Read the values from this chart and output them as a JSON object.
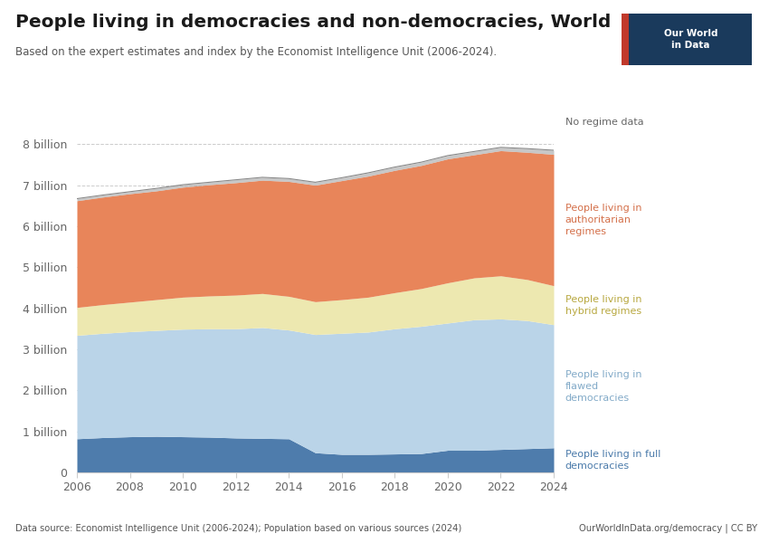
{
  "title": "People living in democracies and non-democracies, World",
  "subtitle": "Based on the expert estimates and index by the Economist Intelligence Unit (2006-2024).",
  "footer_left": "Data source: Economist Intelligence Unit (2006-2024); Population based on various sources (2024)",
  "footer_right": "OurWorldInData.org/democracy | CC BY",
  "years": [
    2006,
    2007,
    2008,
    2009,
    2010,
    2011,
    2012,
    2013,
    2014,
    2015,
    2016,
    2017,
    2018,
    2019,
    2020,
    2021,
    2022,
    2023,
    2024
  ],
  "full_democracies": [
    0.82,
    0.85,
    0.87,
    0.88,
    0.87,
    0.86,
    0.84,
    0.83,
    0.82,
    0.48,
    0.44,
    0.44,
    0.45,
    0.46,
    0.54,
    0.54,
    0.56,
    0.58,
    0.6
  ],
  "flawed_democracies": [
    2.52,
    2.54,
    2.56,
    2.58,
    2.62,
    2.64,
    2.66,
    2.7,
    2.65,
    2.88,
    2.95,
    2.98,
    3.05,
    3.1,
    3.1,
    3.18,
    3.18,
    3.12,
    3.0
  ],
  "hybrid_regimes": [
    0.68,
    0.7,
    0.72,
    0.75,
    0.78,
    0.8,
    0.82,
    0.83,
    0.82,
    0.8,
    0.82,
    0.85,
    0.88,
    0.92,
    0.98,
    1.02,
    1.05,
    1.0,
    0.95
  ],
  "authoritarian_regimes": [
    2.6,
    2.62,
    2.64,
    2.65,
    2.68,
    2.71,
    2.74,
    2.76,
    2.8,
    2.84,
    2.9,
    2.95,
    2.98,
    3.0,
    3.02,
    3.0,
    3.05,
    3.1,
    3.2
  ],
  "no_regime_data": [
    0.05,
    0.05,
    0.05,
    0.06,
    0.06,
    0.06,
    0.07,
    0.07,
    0.07,
    0.07,
    0.07,
    0.08,
    0.08,
    0.08,
    0.08,
    0.08,
    0.08,
    0.09,
    0.1
  ],
  "color_full": "#4e7cac",
  "color_flawed": "#bad4e8",
  "color_hybrid": "#ede8b0",
  "color_authoritarian": "#e8855a",
  "color_no_regime": "#b0b0b0",
  "label_full": "People living in full\ndemocracies",
  "label_flawed": "People living in\nflawed\ndemocracies",
  "label_hybrid": "People living in\nhybrid regimes",
  "label_authoritarian": "People living in\nauthoritarian\nregimes",
  "label_no_regime": "No regime data",
  "ytick_labels": [
    "0",
    "1 billion",
    "2 billion",
    "3 billion",
    "4 billion",
    "5 billion",
    "6 billion",
    "7 billion",
    "8 billion"
  ],
  "ytick_values": [
    0,
    1,
    2,
    3,
    4,
    5,
    6,
    7,
    8
  ],
  "ylim": [
    0,
    8.6
  ],
  "xlim": [
    2006,
    2024
  ],
  "color_authoritarian_label": "#d4704a",
  "color_hybrid_label": "#b8a840",
  "color_flawed_label": "#82aac8",
  "color_full_label": "#4a7aaa",
  "color_no_regime_label": "#666666"
}
